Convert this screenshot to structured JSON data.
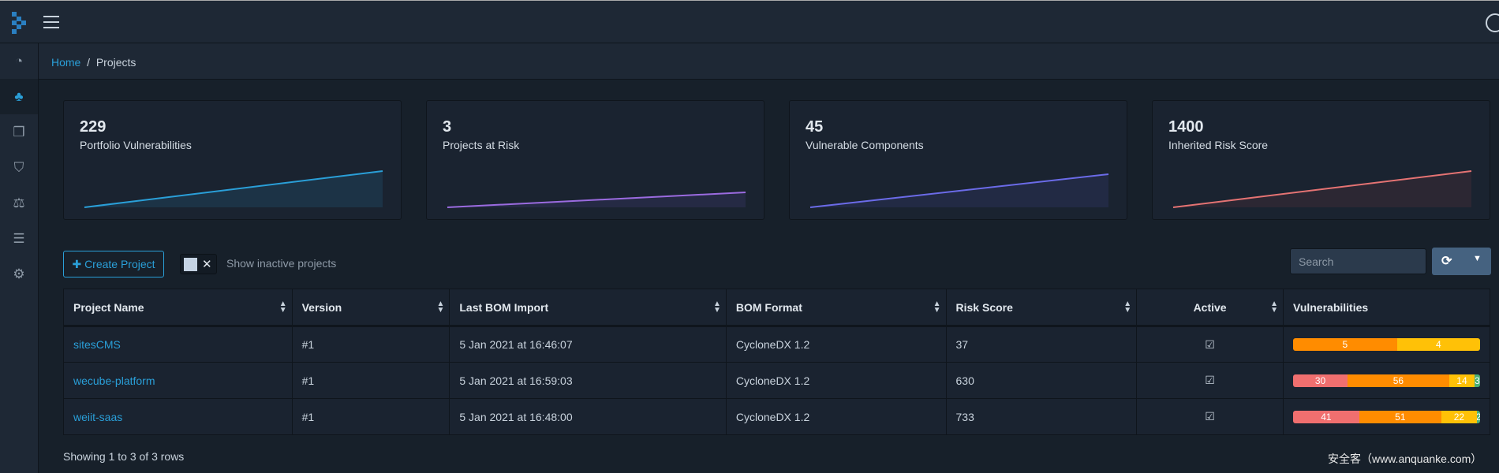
{
  "breadcrumb": {
    "home": "Home",
    "current": "Projects"
  },
  "cards": [
    {
      "value": "229",
      "label": "Portfolio Vulnerabilities",
      "color": "#2a9fd8",
      "fill": "#1c3346"
    },
    {
      "value": "3",
      "label": "Projects at Risk",
      "color": "#9b6be0",
      "fill": "#252a44"
    },
    {
      "value": "45",
      "label": "Vulnerable Components",
      "color": "#6b6be8",
      "fill": "#222a44"
    },
    {
      "value": "1400",
      "label": "Inherited Risk Score",
      "color": "#e57373",
      "fill": "#2c2733"
    }
  ],
  "toolbar": {
    "create_label": "Create Project",
    "toggle_x": "✕",
    "inactive_label": "Show inactive projects",
    "search_placeholder": "Search"
  },
  "table": {
    "headers": [
      "Project Name",
      "Version",
      "Last BOM Import",
      "BOM Format",
      "Risk Score",
      "Active",
      "Vulnerabilities"
    ],
    "rows": [
      {
        "name": "sitesCMS",
        "version": "#1",
        "imported": "5 Jan 2021 at 16:46:07",
        "format": "CycloneDX 1.2",
        "risk": "37",
        "active": "☑",
        "vulns": [
          {
            "label": "",
            "value": 0,
            "color": "#f06f6f"
          },
          {
            "label": "5",
            "value": 5,
            "color": "#ff8c00"
          },
          {
            "label": "4",
            "value": 4,
            "color": "#ffc107"
          }
        ]
      },
      {
        "name": "wecube-platform",
        "version": "#1",
        "imported": "5 Jan 2021 at 16:59:03",
        "format": "CycloneDX 1.2",
        "risk": "630",
        "active": "☑",
        "vulns": [
          {
            "label": "30",
            "value": 30,
            "color": "#f06f6f"
          },
          {
            "label": "56",
            "value": 56,
            "color": "#ff8c00"
          },
          {
            "label": "14",
            "value": 14,
            "color": "#ffc107"
          },
          {
            "label": "3",
            "value": 3,
            "color": "#4caf75"
          }
        ]
      },
      {
        "name": "weiit-saas",
        "version": "#1",
        "imported": "5 Jan 2021 at 16:48:00",
        "format": "CycloneDX 1.2",
        "risk": "733",
        "active": "☑",
        "vulns": [
          {
            "label": "41",
            "value": 41,
            "color": "#f06f6f"
          },
          {
            "label": "51",
            "value": 51,
            "color": "#ff8c00"
          },
          {
            "label": "22",
            "value": 22,
            "color": "#ffc107"
          },
          {
            "label": "2",
            "value": 2,
            "color": "#4caf75"
          }
        ]
      }
    ]
  },
  "footer": "Showing 1 to 3 of 3 rows",
  "watermark": "安全客（www.anquanke.com）"
}
